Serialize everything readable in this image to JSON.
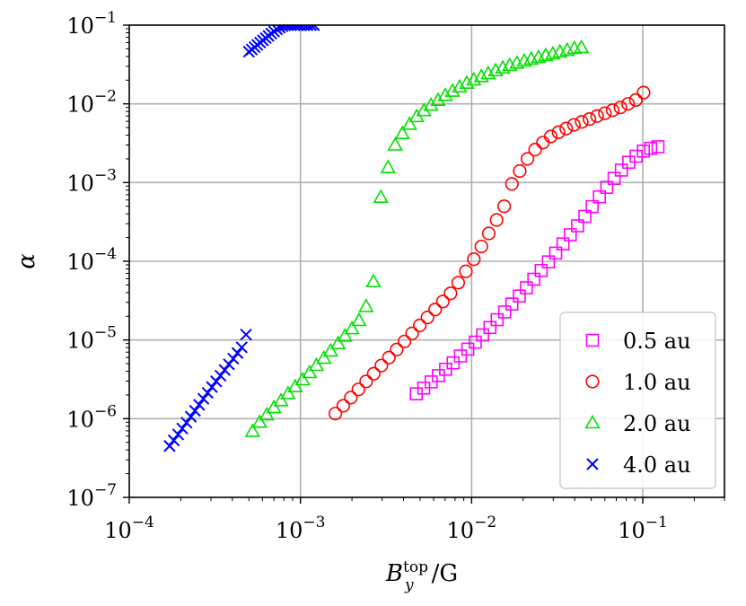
{
  "chart_data": {
    "type": "scatter",
    "xlabel": "B_y^top/G",
    "xlabel_parts": {
      "main": "B",
      "sub": "y",
      "sup": "top",
      "unit": "/G"
    },
    "ylabel": "α",
    "x_scale": "log",
    "y_scale": "log",
    "xlim": [
      0.0001,
      0.3
    ],
    "ylim": [
      1e-07,
      0.1
    ],
    "grid": true,
    "legend_position": "lower-right",
    "x_ticks": [
      {
        "value": 0.0001,
        "base": "10",
        "exp": "−4"
      },
      {
        "value": 0.001,
        "base": "10",
        "exp": "−3"
      },
      {
        "value": 0.01,
        "base": "10",
        "exp": "−2"
      },
      {
        "value": 0.1,
        "base": "10",
        "exp": "−1"
      }
    ],
    "y_ticks": [
      {
        "value": 1e-07,
        "base": "10",
        "exp": "−7"
      },
      {
        "value": 1e-06,
        "base": "10",
        "exp": "−6"
      },
      {
        "value": 1e-05,
        "base": "10",
        "exp": "−5"
      },
      {
        "value": 0.0001,
        "base": "10",
        "exp": "−4"
      },
      {
        "value": 0.001,
        "base": "10",
        "exp": "−3"
      },
      {
        "value": 0.01,
        "base": "10",
        "exp": "−2"
      },
      {
        "value": 0.1,
        "base": "10",
        "exp": "−1"
      }
    ],
    "series": [
      {
        "name": "0.5 au",
        "marker": "square",
        "color": "#ff00ff",
        "points": [
          [
            0.00475,
            2.07e-06
          ],
          [
            0.00525,
            2.45e-06
          ],
          [
            0.0058,
            2.93e-06
          ],
          [
            0.0064,
            3.52e-06
          ],
          [
            0.00705,
            4.24e-06
          ],
          [
            0.0078,
            5.12e-06
          ],
          [
            0.0086,
            6.26e-06
          ],
          [
            0.0095,
            7.64e-06
          ],
          [
            0.0105,
            9.39e-06
          ],
          [
            0.0116,
            1.16e-05
          ],
          [
            0.0128,
            1.44e-05
          ],
          [
            0.0141,
            1.81e-05
          ],
          [
            0.0156,
            2.27e-05
          ],
          [
            0.0172,
            2.86e-05
          ],
          [
            0.019,
            3.62e-05
          ],
          [
            0.0209,
            4.6e-05
          ],
          [
            0.0231,
            5.91e-05
          ],
          [
            0.0255,
            7.64e-05
          ],
          [
            0.0281,
            9.82e-05
          ],
          [
            0.031,
            0.000127
          ],
          [
            0.0342,
            0.000166
          ],
          [
            0.0377,
            0.000217
          ],
          [
            0.0416,
            0.000282
          ],
          [
            0.0459,
            0.000372
          ],
          [
            0.0506,
            0.000495
          ],
          [
            0.0558,
            0.000658
          ],
          [
            0.0616,
            0.000868
          ],
          [
            0.068,
            0.00113
          ],
          [
            0.075,
            0.00144
          ],
          [
            0.0828,
            0.00181
          ],
          [
            0.0914,
            0.00216
          ],
          [
            0.1008,
            0.00251
          ],
          [
            0.1112,
            0.00272
          ],
          [
            0.1227,
            0.00285
          ]
        ]
      },
      {
        "name": "1.0 au",
        "marker": "circle",
        "color": "#ff0000",
        "points": [
          [
            0.0016,
            1.16e-06
          ],
          [
            0.00178,
            1.46e-06
          ],
          [
            0.00197,
            1.85e-06
          ],
          [
            0.00218,
            2.35e-06
          ],
          [
            0.00242,
            2.97e-06
          ],
          [
            0.00268,
            3.73e-06
          ],
          [
            0.00297,
            4.73e-06
          ],
          [
            0.00329,
            5.98e-06
          ],
          [
            0.00365,
            7.55e-06
          ],
          [
            0.00405,
            9.55e-06
          ],
          [
            0.00449,
            1.21e-05
          ],
          [
            0.00498,
            1.53e-05
          ],
          [
            0.00552,
            1.93e-05
          ],
          [
            0.00612,
            2.44e-05
          ],
          [
            0.00679,
            3.08e-05
          ],
          [
            0.00753,
            3.91e-05
          ],
          [
            0.00835,
            5.35e-05
          ],
          [
            0.00926,
            7.44e-05
          ],
          [
            0.0103,
            0.000106
          ],
          [
            0.0114,
            0.000154
          ],
          [
            0.0126,
            0.000226
          ],
          [
            0.014,
            0.000335
          ],
          [
            0.0155,
            0.0005
          ],
          [
            0.0172,
            0.00096
          ],
          [
            0.0191,
            0.0014
          ],
          [
            0.0212,
            0.002
          ],
          [
            0.0235,
            0.00262
          ],
          [
            0.0261,
            0.00322
          ],
          [
            0.029,
            0.00385
          ],
          [
            0.0322,
            0.00436
          ],
          [
            0.0357,
            0.00486
          ],
          [
            0.0396,
            0.0054
          ],
          [
            0.044,
            0.0059
          ],
          [
            0.0488,
            0.0064
          ],
          [
            0.0541,
            0.007
          ],
          [
            0.0601,
            0.0076
          ],
          [
            0.0667,
            0.0083
          ],
          [
            0.074,
            0.009
          ],
          [
            0.0821,
            0.01
          ],
          [
            0.0911,
            0.0112
          ],
          [
            0.1011,
            0.0139
          ]
        ]
      },
      {
        "name": "2.0 au",
        "marker": "triangle",
        "color": "#00e000",
        "points": [
          [
            0.000525,
            6.9e-07
          ],
          [
            0.000578,
            9e-07
          ],
          [
            0.000636,
            1.12e-06
          ],
          [
            0.0007,
            1.38e-06
          ],
          [
            0.00077,
            1.69e-06
          ],
          [
            0.000847,
            2.08e-06
          ],
          [
            0.000932,
            2.55e-06
          ],
          [
            0.00103,
            3.12e-06
          ],
          [
            0.00113,
            3.85e-06
          ],
          [
            0.00124,
            4.75e-06
          ],
          [
            0.00137,
            5.86e-06
          ],
          [
            0.0015,
            7.25e-06
          ],
          [
            0.00166,
            9e-06
          ],
          [
            0.00182,
            1.12e-05
          ],
          [
            0.002,
            1.39e-05
          ],
          [
            0.0022,
            1.77e-05
          ],
          [
            0.00242,
            2.66e-05
          ],
          [
            0.00267,
            5.5e-05
          ],
          [
            0.00295,
            0.00065
          ],
          [
            0.00325,
            0.00155
          ],
          [
            0.00358,
            0.003
          ],
          [
            0.00394,
            0.0042
          ],
          [
            0.00434,
            0.0055
          ],
          [
            0.00478,
            0.0069
          ],
          [
            0.00526,
            0.0082
          ],
          [
            0.00579,
            0.0096
          ],
          [
            0.00637,
            0.0111
          ],
          [
            0.00702,
            0.0128
          ],
          [
            0.00773,
            0.0145
          ],
          [
            0.00851,
            0.0164
          ],
          [
            0.00937,
            0.0183
          ],
          [
            0.0103,
            0.0202
          ],
          [
            0.0114,
            0.0222
          ],
          [
            0.0125,
            0.0242
          ],
          [
            0.0138,
            0.0264
          ],
          [
            0.0152,
            0.0286
          ],
          [
            0.0167,
            0.0308
          ],
          [
            0.0184,
            0.0329
          ],
          [
            0.0203,
            0.035
          ],
          [
            0.0223,
            0.037
          ],
          [
            0.0246,
            0.039
          ],
          [
            0.0271,
            0.041
          ],
          [
            0.0298,
            0.0432
          ],
          [
            0.0328,
            0.0456
          ],
          [
            0.0362,
            0.048
          ],
          [
            0.0398,
            0.0505
          ],
          [
            0.0438,
            0.052
          ]
        ]
      },
      {
        "name": "4.0 au",
        "marker": "x",
        "color": "#0000ff",
        "points": [
          [
            0.000172,
            4.5e-07
          ],
          [
            0.000182,
            5.3e-07
          ],
          [
            0.000193,
            6.3e-07
          ],
          [
            0.000204,
            7.5e-07
          ],
          [
            0.000216,
            8.9e-07
          ],
          [
            0.000229,
            1.06e-06
          ],
          [
            0.000242,
            1.26e-06
          ],
          [
            0.000256,
            1.5e-06
          ],
          [
            0.000271,
            1.79e-06
          ],
          [
            0.000287,
            2.13e-06
          ],
          [
            0.000304,
            2.52e-06
          ],
          [
            0.000322,
            2.98e-06
          ],
          [
            0.000341,
            3.52e-06
          ],
          [
            0.000361,
            4.15e-06
          ],
          [
            0.000382,
            4.9e-06
          ],
          [
            0.000405,
            5.78e-06
          ],
          [
            0.000429,
            6.82e-06
          ],
          [
            0.000454,
            8.05e-06
          ],
          [
            0.000481,
            1.17e-05
          ],
          [
            0.0005,
            0.046
          ],
          [
            0.00052,
            0.049
          ],
          [
            0.00054,
            0.0525
          ],
          [
            0.00056,
            0.056
          ],
          [
            0.000582,
            0.06
          ],
          [
            0.000604,
            0.064
          ],
          [
            0.000627,
            0.0685
          ],
          [
            0.000651,
            0.073
          ],
          [
            0.000676,
            0.078
          ],
          [
            0.000702,
            0.083
          ],
          [
            0.000729,
            0.0885
          ],
          [
            0.000757,
            0.093
          ],
          [
            0.000786,
            0.097
          ],
          [
            0.000816,
            0.1
          ],
          [
            0.000847,
            0.1
          ],
          [
            0.00088,
            0.1
          ],
          [
            0.00092,
            0.1
          ],
          [
            0.00096,
            0.1
          ],
          [
            0.001,
            0.1
          ],
          [
            0.00105,
            0.1
          ],
          [
            0.0011,
            0.1
          ],
          [
            0.00115,
            0.1
          ],
          [
            0.0012,
            0.1
          ]
        ]
      }
    ]
  }
}
